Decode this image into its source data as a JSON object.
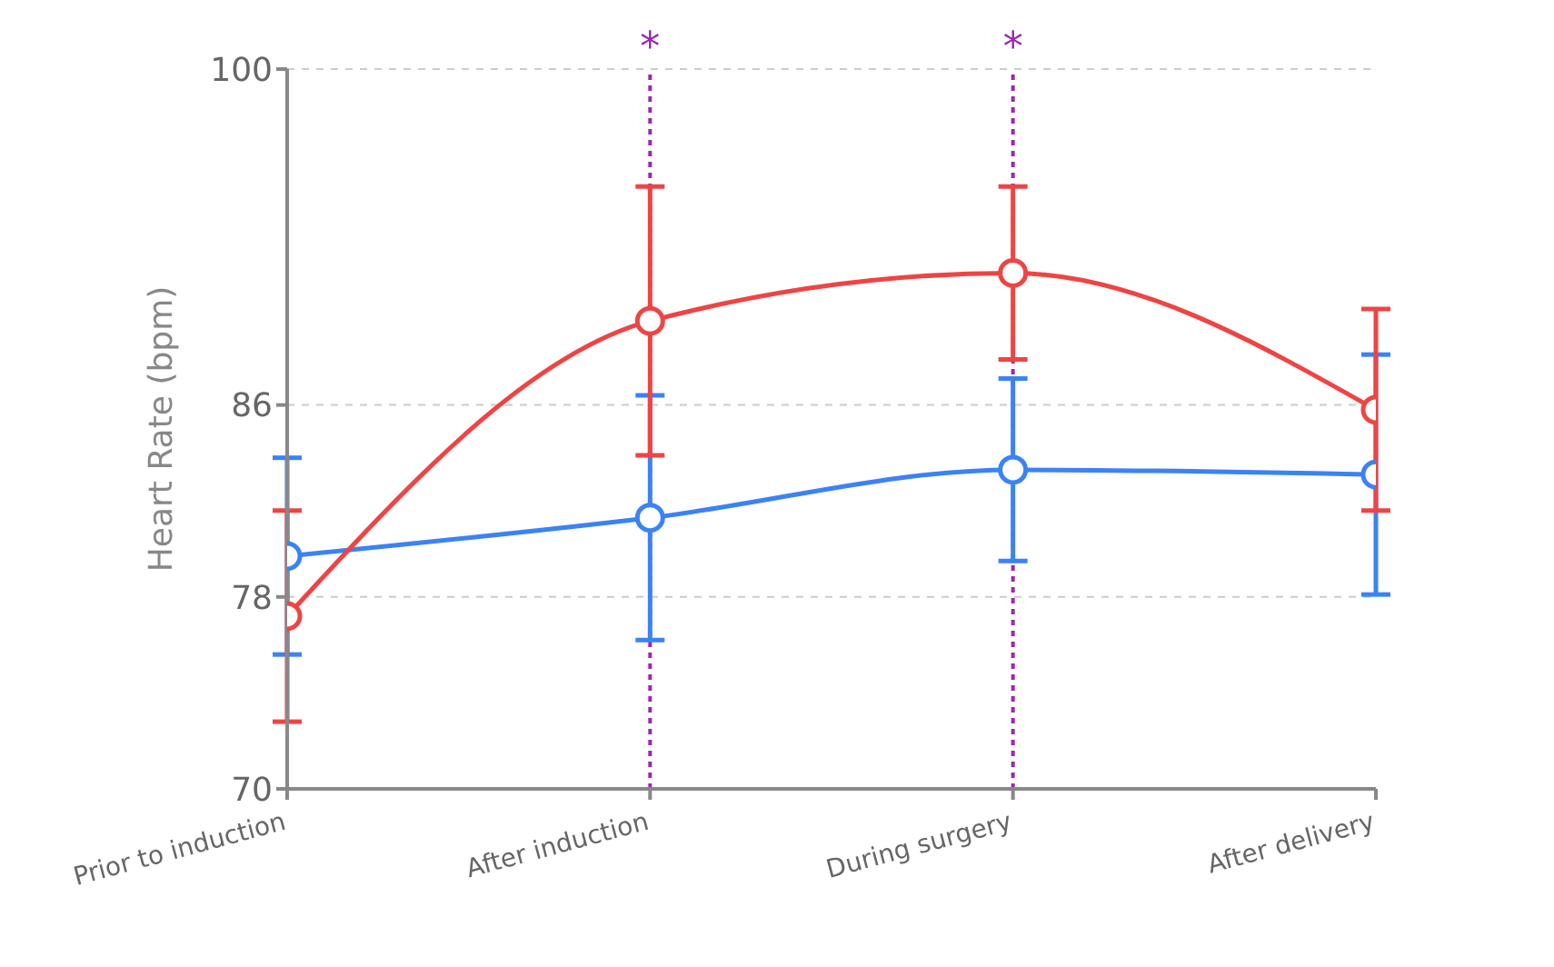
{
  "chart_data": {
    "type": "line",
    "ylabel": "Heart Rate (bpm)",
    "categories": [
      "Prior to induction",
      "After induction",
      "During surgery",
      "After delivery"
    ],
    "series": [
      {
        "color": "#3b82f6",
        "values": [
          79.7,
          81.3,
          83.3,
          83.1
        ],
        "errors": [
          4.1,
          5.1,
          3.8,
          5.0
        ]
      },
      {
        "color": "#ef4444",
        "values": [
          77.2,
          89.5,
          91.5,
          85.8
        ],
        "errors": [
          4.4,
          5.6,
          3.6,
          4.2
        ]
      }
    ],
    "ylim": [
      70,
      100
    ],
    "yticks": [
      70,
      78,
      86,
      100
    ],
    "grid": "y",
    "legend": false,
    "marker": "circle",
    "line_style": "solid",
    "ref_lines": [
      {
        "axis": "x",
        "value": "After induction",
        "label": "*",
        "color": "#9c27b0",
        "line_style": "dotted"
      },
      {
        "axis": "x",
        "value": "During surgery",
        "label": "*",
        "color": "#9c27b0",
        "line_style": "dotted"
      }
    ]
  }
}
